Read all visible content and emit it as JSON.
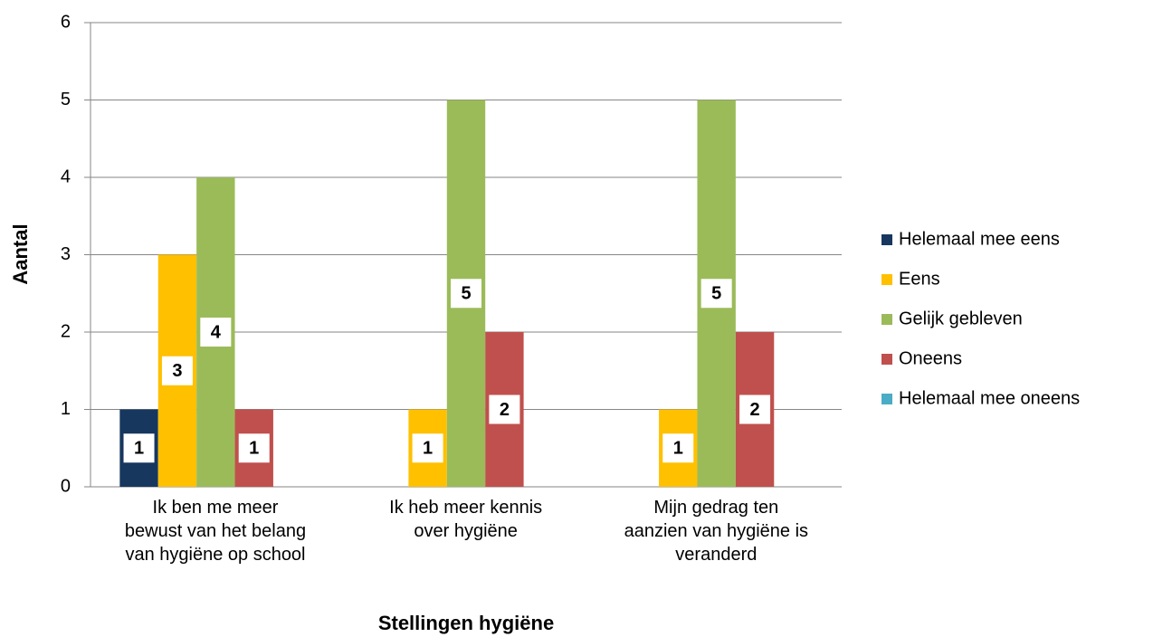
{
  "chart_data": {
    "type": "bar",
    "x_label": "Stellingen hygiëne",
    "y_label": "Aantal",
    "categories": [
      "Ik ben me meer\nbewust van het belang\nvan hygiëne op school",
      "Ik heb meer kennis\nover hygiëne",
      "Mijn gedrag ten\naanzien van hygiëne is\nveranderd"
    ],
    "series": [
      {
        "name": "Helemaal mee eens",
        "color": "#17375e",
        "values": [
          1,
          null,
          null
        ]
      },
      {
        "name": "Eens",
        "color": "#ffc000",
        "values": [
          3,
          1,
          1
        ]
      },
      {
        "name": "Gelijk gebleven",
        "color": "#9bbb59",
        "values": [
          4,
          5,
          5
        ]
      },
      {
        "name": "Oneens",
        "color": "#c0504d",
        "values": [
          1,
          2,
          2
        ]
      },
      {
        "name": "Helemaal mee oneens",
        "color": "#4bacc6",
        "values": [
          null,
          null,
          null
        ]
      }
    ],
    "ylim": [
      0,
      6
    ],
    "yticks": [
      0,
      1,
      2,
      3,
      4,
      5,
      6
    ],
    "grid": true,
    "legend": "right"
  }
}
